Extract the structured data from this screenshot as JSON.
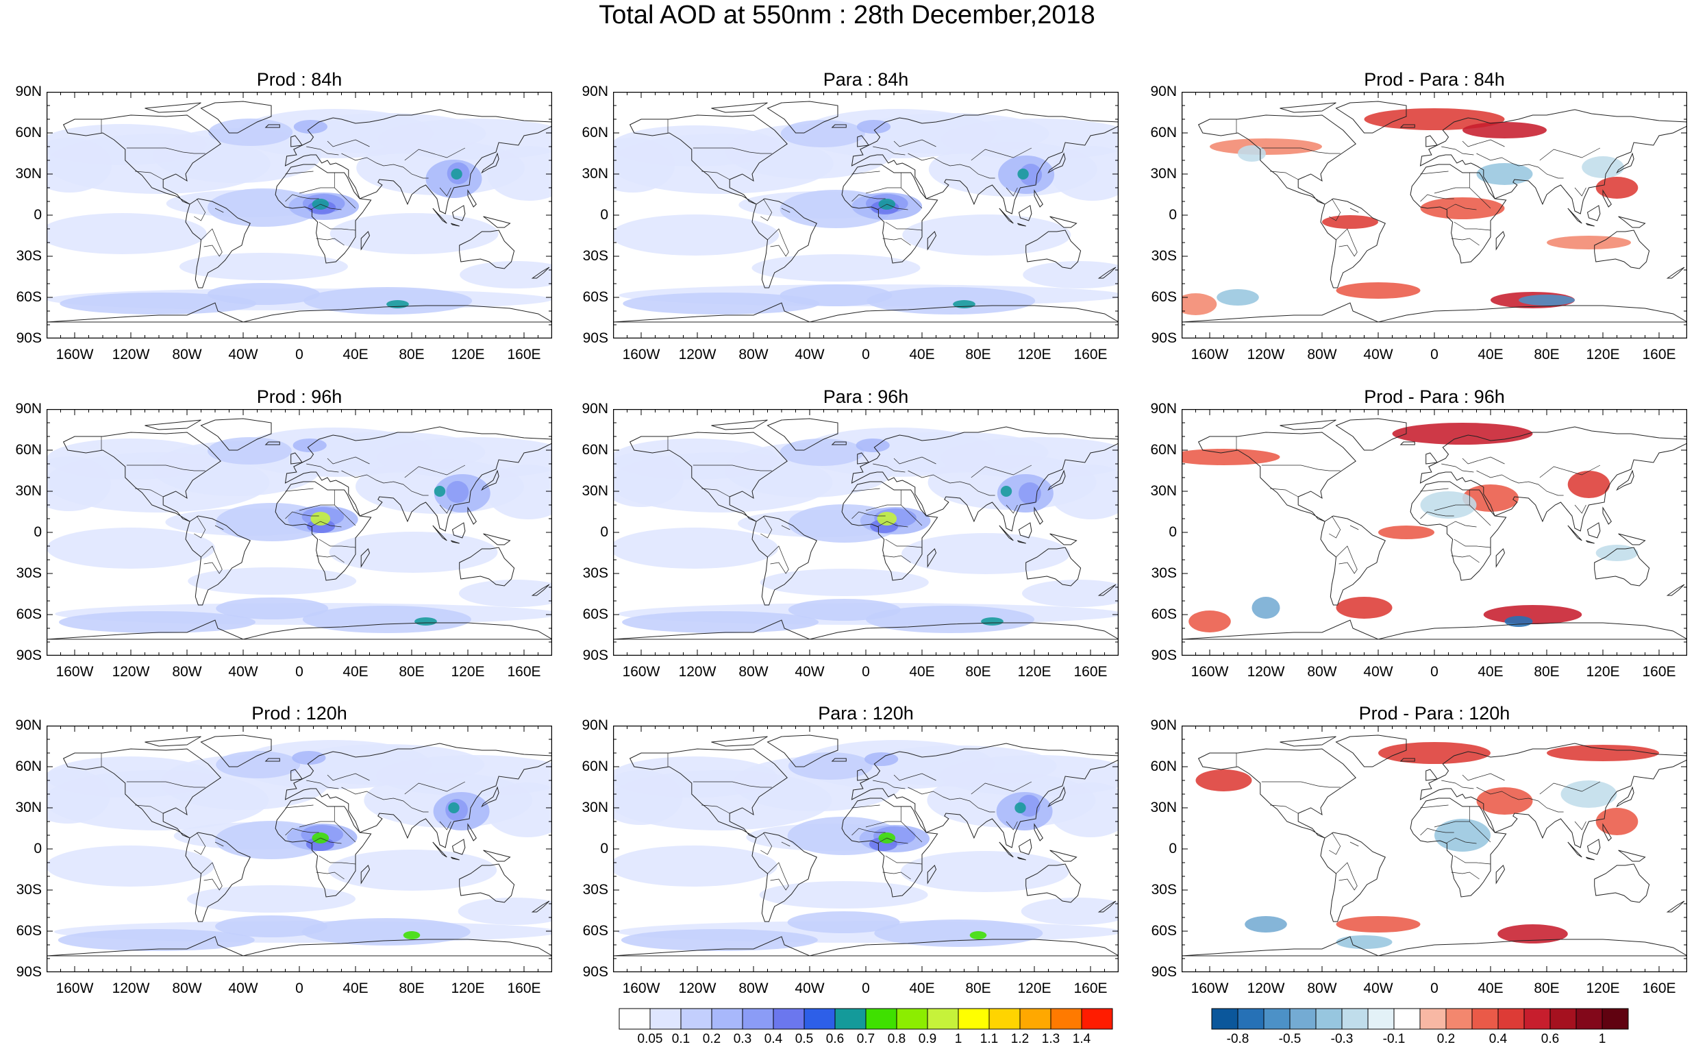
{
  "title": "Total AOD at 550nm : 28th December,2018",
  "lat_labels": [
    "90N",
    "60N",
    "30N",
    "0",
    "30S",
    "60S",
    "90S"
  ],
  "lon_labels": [
    "160W",
    "120W",
    "80W",
    "40W",
    "0",
    "40E",
    "80E",
    "120E",
    "160E"
  ],
  "panels": [
    {
      "title": "Prod : 84h",
      "kind": "aod"
    },
    {
      "title": "Para : 84h",
      "kind": "aod"
    },
    {
      "title": "Prod - Para : 84h",
      "kind": "diff"
    },
    {
      "title": "Prod : 96h",
      "kind": "aod"
    },
    {
      "title": "Para : 96h",
      "kind": "aod"
    },
    {
      "title": "Prod - Para : 96h",
      "kind": "diff"
    },
    {
      "title": "Prod : 120h",
      "kind": "aod"
    },
    {
      "title": "Para : 120h",
      "kind": "aod"
    },
    {
      "title": "Prod - Para : 120h",
      "kind": "diff"
    }
  ],
  "aod_colorbar": {
    "labels": [
      "0.05",
      "0.1",
      "0.2",
      "0.3",
      "0.4",
      "0.5",
      "0.6",
      "0.7",
      "0.8",
      "0.9",
      "1",
      "1.1",
      "1.2",
      "1.3",
      "1.4"
    ],
    "colors": [
      "#ffffff",
      "#dfe6ff",
      "#c3cffd",
      "#a8b8fb",
      "#8b9cf6",
      "#6b77ee",
      "#2d5fe8",
      "#149a9a",
      "#3fe000",
      "#8ced00",
      "#c6f23a",
      "#ffff00",
      "#ffd400",
      "#ffa800",
      "#ff7a00",
      "#ff1c00"
    ]
  },
  "diff_colorbar": {
    "labels": [
      "-0.8",
      "-0.5",
      "-0.3",
      "-0.1",
      "0.2",
      "0.4",
      "0.6",
      "1"
    ],
    "colors": [
      "#0b579b",
      "#2671b6",
      "#4c91c7",
      "#74abd3",
      "#97c6df",
      "#c0ddeb",
      "#e3f1f7",
      "#ffffff",
      "#f8b8a4",
      "#f3876e",
      "#ea5a48",
      "#dd3b36",
      "#c71e2d",
      "#a5111f",
      "#82081a",
      "#600210"
    ]
  }
}
